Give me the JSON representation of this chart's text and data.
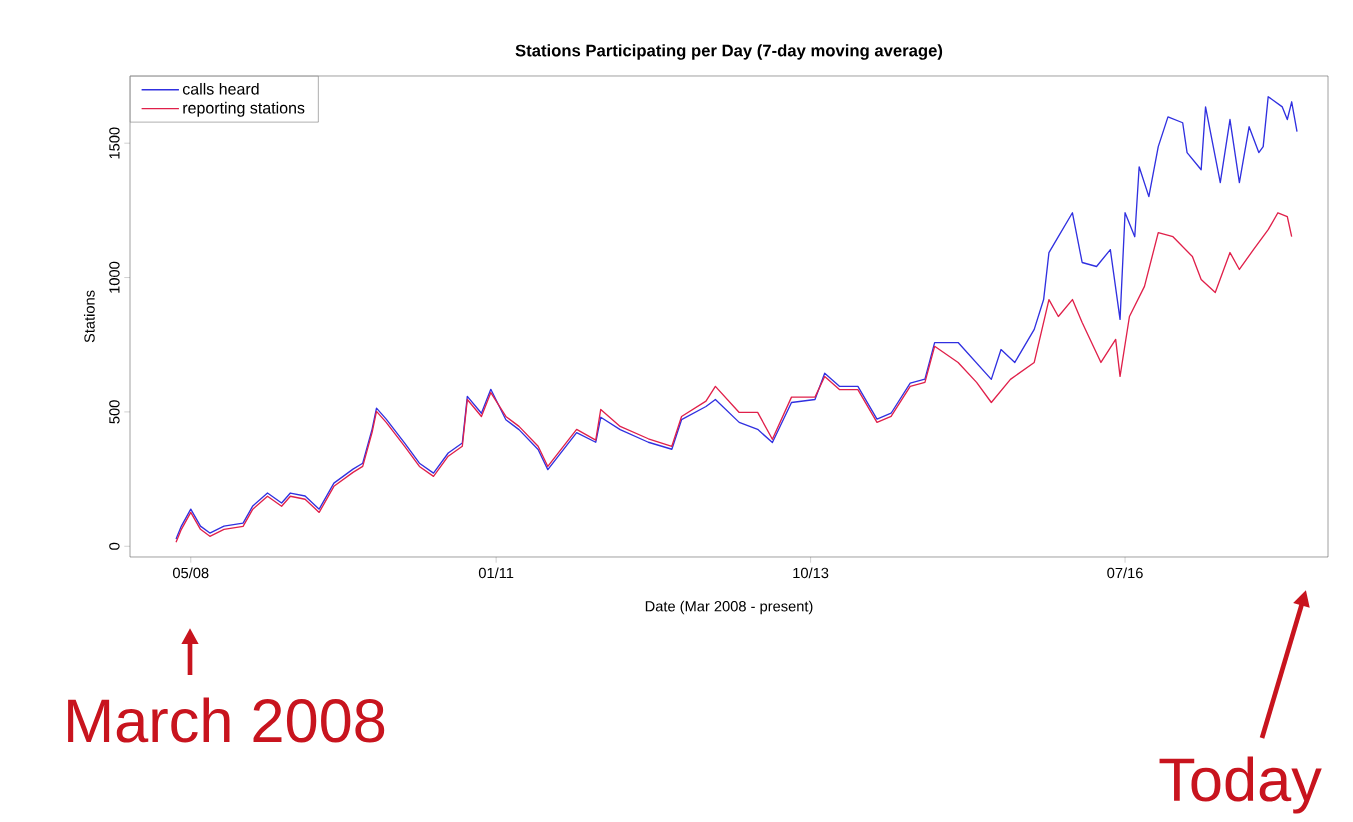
{
  "chart_data": {
    "type": "line",
    "title": "Stations Participating per Day (7-day moving average)",
    "xlabel": "Date (Mar 2008 - present)",
    "ylabel": "Stations",
    "xlim": [
      "2007-10-20",
      "2018-04-10"
    ],
    "ylim": [
      -40,
      1750
    ],
    "xticks": [
      {
        "value": "2008-05-01",
        "label": "05/08"
      },
      {
        "value": "2011-01-01",
        "label": "01/11"
      },
      {
        "value": "2013-10-01",
        "label": "10/13"
      },
      {
        "value": "2016-07-01",
        "label": "07/16"
      }
    ],
    "yticks": [
      0,
      500,
      1000,
      1500
    ],
    "legend": "top left",
    "grid": false,
    "annotations": [
      "March 2008",
      "Today"
    ],
    "series": [
      {
        "name": "calls heard",
        "color": "#3030e0",
        "x": [
          "2008-03-15",
          "2008-04-01",
          "2008-05-01",
          "2008-06-01",
          "2008-07-01",
          "2008-08-15",
          "2008-10-15",
          "2008-11-15",
          "2009-01-01",
          "2009-02-15",
          "2009-03-15",
          "2009-05-01",
          "2009-06-15",
          "2009-08-01",
          "2009-10-01",
          "2009-11-01",
          "2009-12-01",
          "2009-12-15",
          "2010-01-15",
          "2010-03-15",
          "2010-05-01",
          "2010-06-15",
          "2010-08-01",
          "2010-09-15",
          "2010-10-01",
          "2010-11-15",
          "2010-12-15",
          "2011-02-01",
          "2011-03-15",
          "2011-05-15",
          "2011-06-15",
          "2011-09-15",
          "2011-11-15",
          "2011-12-01",
          "2012-02-01",
          "2012-05-01",
          "2012-07-15",
          "2012-08-15",
          "2012-11-01",
          "2012-12-01",
          "2013-02-15",
          "2013-04-15",
          "2013-06-01",
          "2013-08-01",
          "2013-10-15",
          "2013-11-15",
          "2014-01-01",
          "2014-03-01",
          "2014-05-01",
          "2014-06-15",
          "2014-08-15",
          "2014-10-01",
          "2014-11-01",
          "2015-01-15",
          "2015-05-01",
          "2015-06-01",
          "2015-07-15",
          "2015-09-15",
          "2015-10-15",
          "2015-11-01",
          "2015-12-01",
          "2016-01-15",
          "2016-02-15",
          "2016-04-01",
          "2016-05-15",
          "2016-06-15",
          "2016-07-01",
          "2016-08-01",
          "2016-08-15",
          "2016-09-15",
          "2016-10-15",
          "2016-11-15",
          "2017-01-01",
          "2017-01-15",
          "2017-03-01",
          "2017-03-15",
          "2017-05-01",
          "2017-06-01",
          "2017-07-01",
          "2017-08-01",
          "2017-09-01",
          "2017-09-15",
          "2017-10-01",
          "2017-11-15",
          "2017-12-01",
          "2017-12-15",
          "2018-01-01"
        ],
        "values": [
          27,
          75,
          138,
          75,
          49,
          75,
          86,
          150,
          198,
          161,
          198,
          187,
          138,
          235,
          287,
          309,
          436,
          514,
          473,
          384,
          309,
          272,
          347,
          384,
          558,
          495,
          584,
          471,
          434,
          360,
          285,
          423,
          387,
          480,
          434,
          387,
          361,
          471,
          520,
          546,
          461,
          435,
          386,
          535,
          546,
          644,
          595,
          595,
          473,
          495,
          607,
          622,
          758,
          758,
          621,
          732,
          684,
          807,
          918,
          1093,
          1152,
          1241,
          1056,
          1041,
          1104,
          844,
          1241,
          1152,
          1412,
          1301,
          1487,
          1598,
          1576,
          1465,
          1401,
          1635,
          1353,
          1588,
          1353,
          1561,
          1465,
          1487,
          1673,
          1635,
          1588,
          1654,
          1543
        ]
      },
      {
        "name": "reporting stations",
        "color": "#e0204a",
        "x": [
          "2008-03-15",
          "2008-04-01",
          "2008-05-01",
          "2008-06-01",
          "2008-07-01",
          "2008-08-15",
          "2008-10-15",
          "2008-11-15",
          "2009-01-01",
          "2009-02-15",
          "2009-03-15",
          "2009-05-01",
          "2009-06-15",
          "2009-08-01",
          "2009-10-01",
          "2009-11-01",
          "2009-12-01",
          "2009-12-15",
          "2010-01-15",
          "2010-03-15",
          "2010-05-01",
          "2010-06-15",
          "2010-08-01",
          "2010-09-15",
          "2010-10-01",
          "2010-11-15",
          "2010-12-15",
          "2011-02-01",
          "2011-03-15",
          "2011-05-15",
          "2011-06-15",
          "2011-09-15",
          "2011-11-15",
          "2011-12-01",
          "2012-02-01",
          "2012-05-01",
          "2012-07-15",
          "2012-08-15",
          "2012-11-01",
          "2012-12-01",
          "2013-02-15",
          "2013-04-15",
          "2013-06-01",
          "2013-08-01",
          "2013-10-15",
          "2013-11-15",
          "2014-01-01",
          "2014-03-01",
          "2014-05-01",
          "2014-06-15",
          "2014-08-15",
          "2014-10-01",
          "2014-11-01",
          "2015-01-15",
          "2015-03-15",
          "2015-05-01",
          "2015-07-01",
          "2015-09-15",
          "2015-11-01",
          "2015-12-01",
          "2016-01-15",
          "2016-02-15",
          "2016-04-15",
          "2016-06-01",
          "2016-06-15",
          "2016-07-15",
          "2016-09-01",
          "2016-10-15",
          "2016-12-01",
          "2017-02-01",
          "2017-03-01",
          "2017-04-15",
          "2017-06-01",
          "2017-07-01",
          "2017-08-15",
          "2017-10-01",
          "2017-11-01",
          "2017-12-01",
          "2017-12-15"
        ],
        "values": [
          15,
          63,
          126,
          63,
          37,
          63,
          74,
          138,
          186,
          149,
          186,
          175,
          126,
          223,
          275,
          297,
          424,
          502,
          461,
          372,
          297,
          260,
          335,
          372,
          546,
          483,
          572,
          483,
          446,
          372,
          297,
          435,
          395,
          509,
          446,
          400,
          372,
          483,
          540,
          595,
          498,
          498,
          398,
          555,
          555,
          632,
          583,
          583,
          461,
          483,
          595,
          610,
          744,
          684,
          610,
          535,
          621,
          684,
          918,
          855,
          918,
          833,
          684,
          770,
          632,
          855,
          967,
          1167,
          1152,
          1078,
          993,
          944,
          1093,
          1030,
          1104,
          1178,
          1241,
          1227,
          1152
        ]
      }
    ]
  }
}
